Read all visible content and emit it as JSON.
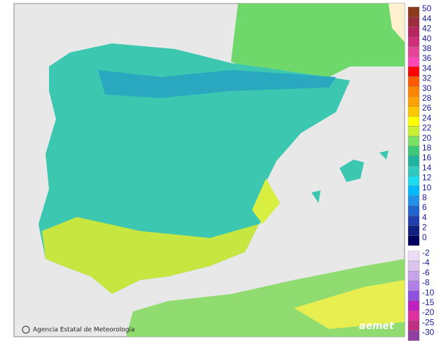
{
  "credit": "Agencia Estatal de Meteorología",
  "logo": "aemet",
  "legend": {
    "entries": [
      {
        "value": 50,
        "color": "#8b3a1a"
      },
      {
        "value": 44,
        "color": "#9b2d3d"
      },
      {
        "value": 42,
        "color": "#b8245e"
      },
      {
        "value": 40,
        "color": "#d0307a"
      },
      {
        "value": 38,
        "color": "#e64496"
      },
      {
        "value": 36,
        "color": "#ff48b8"
      },
      {
        "value": 34,
        "color": "#ff0000"
      },
      {
        "value": 32,
        "color": "#ff5a00"
      },
      {
        "value": 30,
        "color": "#ff8400"
      },
      {
        "value": 28,
        "color": "#ffa200"
      },
      {
        "value": 26,
        "color": "#ffc800"
      },
      {
        "value": 24,
        "color": "#ffff00"
      },
      {
        "value": 22,
        "color": "#c8f032"
      },
      {
        "value": 20,
        "color": "#78e064"
      },
      {
        "value": 18,
        "color": "#3cc878"
      },
      {
        "value": 16,
        "color": "#20b4a0"
      },
      {
        "value": 14,
        "color": "#30cac0"
      },
      {
        "value": 12,
        "color": "#1edcf0"
      },
      {
        "value": 10,
        "color": "#00b8ff"
      },
      {
        "value": 8,
        "color": "#2090e8"
      },
      {
        "value": 6,
        "color": "#2064d0"
      },
      {
        "value": 4,
        "color": "#2040b0"
      },
      {
        "value": 2,
        "color": "#102080"
      },
      {
        "value": 0,
        "color": "#000060"
      },
      {
        "value": -2,
        "color": "#ecdcf4"
      },
      {
        "value": -4,
        "color": "#dcc4ee"
      },
      {
        "value": -6,
        "color": "#c8a4ea"
      },
      {
        "value": -8,
        "color": "#b080e8"
      },
      {
        "value": -10,
        "color": "#9050e0"
      },
      {
        "value": -15,
        "color": "#c020c0"
      },
      {
        "value": -20,
        "color": "#e030a0"
      },
      {
        "value": -25,
        "color": "#c03080"
      },
      {
        "value": -30,
        "color": "#9040a0"
      }
    ]
  }
}
